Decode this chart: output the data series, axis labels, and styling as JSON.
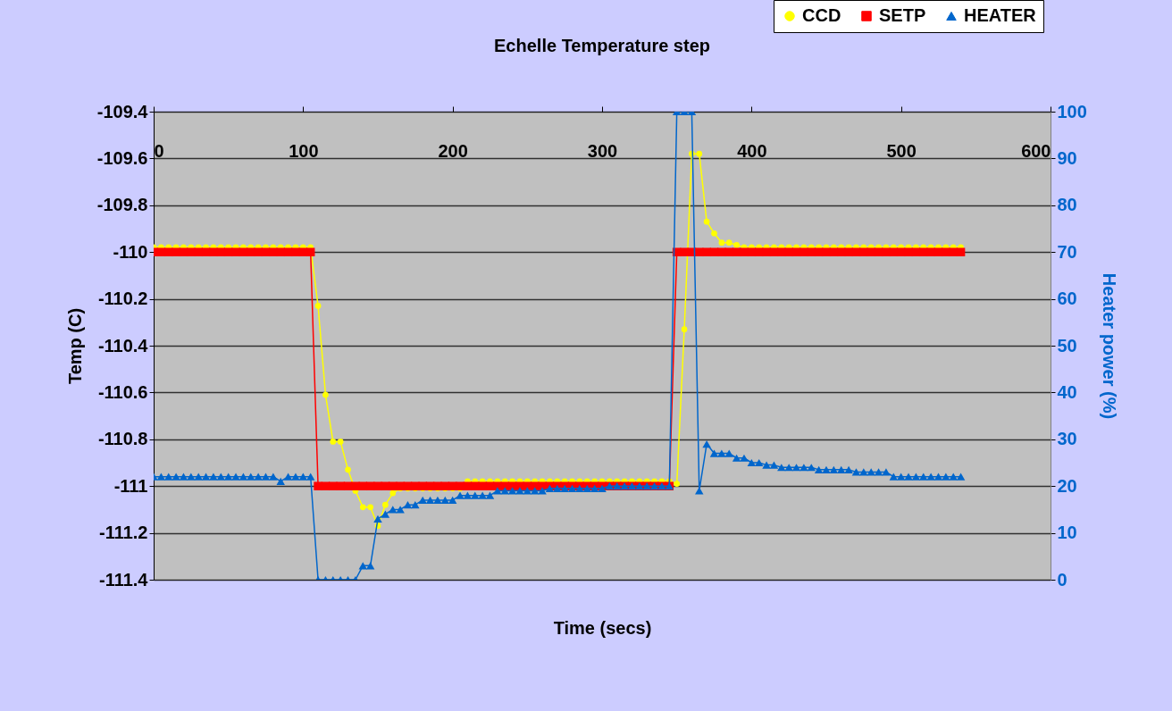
{
  "chart_data": {
    "type": "line",
    "title": "Echelle Temperature step",
    "xlabel": "Time (secs)",
    "ylabel": "Temp (C)",
    "y2label": "Heater power (%)",
    "x": [
      0,
      5,
      10,
      15,
      20,
      25,
      30,
      35,
      40,
      45,
      50,
      55,
      60,
      65,
      70,
      75,
      80,
      85,
      90,
      95,
      100,
      105,
      110,
      115,
      120,
      125,
      130,
      135,
      140,
      145,
      150,
      155,
      160,
      165,
      170,
      175,
      180,
      185,
      190,
      195,
      200,
      205,
      210,
      215,
      220,
      225,
      230,
      235,
      240,
      245,
      250,
      255,
      260,
      265,
      270,
      275,
      280,
      285,
      290,
      295,
      300,
      305,
      310,
      315,
      320,
      325,
      330,
      335,
      340,
      345,
      350,
      355,
      360,
      365,
      370,
      375,
      380,
      385,
      390,
      395,
      400,
      405,
      410,
      415,
      420,
      425,
      430,
      435,
      440,
      445,
      450,
      455,
      460,
      465,
      470,
      475,
      480,
      485,
      490,
      495,
      500,
      505,
      510,
      515,
      520,
      525,
      530,
      535,
      540
    ],
    "series": [
      {
        "name": "CCD",
        "color": "#ffff00",
        "marker": "circle",
        "values": [
          -109.98,
          -109.98,
          -109.98,
          -109.98,
          -109.98,
          -109.98,
          -109.98,
          -109.98,
          -109.98,
          -109.98,
          -109.98,
          -109.98,
          -109.98,
          -109.98,
          -109.98,
          -109.98,
          -109.98,
          -109.98,
          -109.98,
          -109.98,
          -109.98,
          -109.98,
          -110.23,
          -110.61,
          -110.81,
          -110.81,
          -110.93,
          -111.02,
          -111.09,
          -111.09,
          -111.17,
          -111.08,
          -111.03,
          -111.01,
          -111.01,
          -111.01,
          -111.01,
          -111.01,
          -111.01,
          -111.01,
          -111.01,
          -111.01,
          -110.98,
          -110.98,
          -110.98,
          -110.98,
          -110.98,
          -110.98,
          -110.98,
          -110.98,
          -110.98,
          -110.98,
          -110.98,
          -110.98,
          -110.98,
          -110.98,
          -110.98,
          -110.98,
          -110.98,
          -110.98,
          -110.98,
          -110.98,
          -110.98,
          -110.98,
          -110.98,
          -110.98,
          -110.98,
          -110.98,
          -110.98,
          -110.98,
          -110.99,
          -110.33,
          -109.58,
          -109.58,
          -109.87,
          -109.92,
          -109.96,
          -109.96,
          -109.97,
          -109.98,
          -109.98,
          -109.98,
          -109.98,
          -109.98,
          -109.98,
          -109.98,
          -109.98,
          -109.98,
          -109.98,
          -109.98,
          -109.98,
          -109.98,
          -109.98,
          -109.98,
          -109.98,
          -109.98,
          -109.98,
          -109.98,
          -109.98,
          -109.98,
          -109.98,
          -109.98,
          -109.98,
          -109.98,
          -109.98,
          -109.98,
          -109.98,
          -109.98,
          -109.98
        ]
      },
      {
        "name": "SETP",
        "color": "#ff0000",
        "marker": "square",
        "values": [
          -110,
          -110,
          -110,
          -110,
          -110,
          -110,
          -110,
          -110,
          -110,
          -110,
          -110,
          -110,
          -110,
          -110,
          -110,
          -110,
          -110,
          -110,
          -110,
          -110,
          -110,
          -110,
          -111,
          -111,
          -111,
          -111,
          -111,
          -111,
          -111,
          -111,
          -111,
          -111,
          -111,
          -111,
          -111,
          -111,
          -111,
          -111,
          -111,
          -111,
          -111,
          -111,
          -111,
          -111,
          -111,
          -111,
          -111,
          -111,
          -111,
          -111,
          -111,
          -111,
          -111,
          -111,
          -111,
          -111,
          -111,
          -111,
          -111,
          -111,
          -111,
          -111,
          -111,
          -111,
          -111,
          -111,
          -111,
          -111,
          -111,
          -111,
          -110,
          -110,
          -110,
          -110,
          -110,
          -110,
          -110,
          -110,
          -110,
          -110,
          -110,
          -110,
          -110,
          -110,
          -110,
          -110,
          -110,
          -110,
          -110,
          -110,
          -110,
          -110,
          -110,
          -110,
          -110,
          -110,
          -110,
          -110,
          -110,
          -110,
          -110,
          -110,
          -110,
          -110,
          -110,
          -110,
          -110,
          -110,
          -110
        ]
      },
      {
        "name": "HEATER",
        "color": "#0066cc",
        "marker": "triangle",
        "axis": "y2",
        "values": [
          22,
          22,
          22,
          22,
          22,
          22,
          22,
          22,
          22,
          22,
          22,
          22,
          22,
          22,
          22,
          22,
          22,
          21,
          22,
          22,
          22,
          22,
          0,
          0,
          0,
          0,
          0,
          0,
          3,
          3,
          13,
          14,
          15,
          15,
          16,
          16,
          17,
          17,
          17,
          17,
          17,
          18,
          18,
          18,
          18,
          18,
          19,
          19,
          19,
          19,
          19,
          19,
          19,
          19.5,
          19.5,
          19.5,
          19.5,
          19.5,
          19.5,
          19.5,
          19.5,
          20,
          20,
          20,
          20,
          20,
          20,
          20,
          20,
          20,
          100,
          100,
          100,
          19,
          29,
          27,
          27,
          27,
          26,
          26,
          25,
          25,
          24.5,
          24.5,
          24,
          24,
          24,
          24,
          24,
          23.5,
          23.5,
          23.5,
          23.5,
          23.5,
          23,
          23,
          23,
          23,
          23,
          22,
          22,
          22,
          22,
          22,
          22,
          22,
          22,
          22,
          22
        ]
      }
    ],
    "xlim": [
      0,
      600
    ],
    "xticks": [
      0,
      100,
      200,
      300,
      400,
      500,
      600
    ],
    "ylim": [
      -111.4,
      -109.4
    ],
    "yticks": [
      -111.4,
      -111.2,
      -111,
      -110.8,
      -110.6,
      -110.4,
      -110.2,
      -110,
      -109.8,
      -109.6,
      -109.4
    ],
    "y2lim": [
      0,
      100
    ],
    "y2ticks": [
      0,
      10,
      20,
      30,
      40,
      50,
      60,
      70,
      80,
      90,
      100
    ],
    "grid": "y",
    "legend": "top right"
  }
}
